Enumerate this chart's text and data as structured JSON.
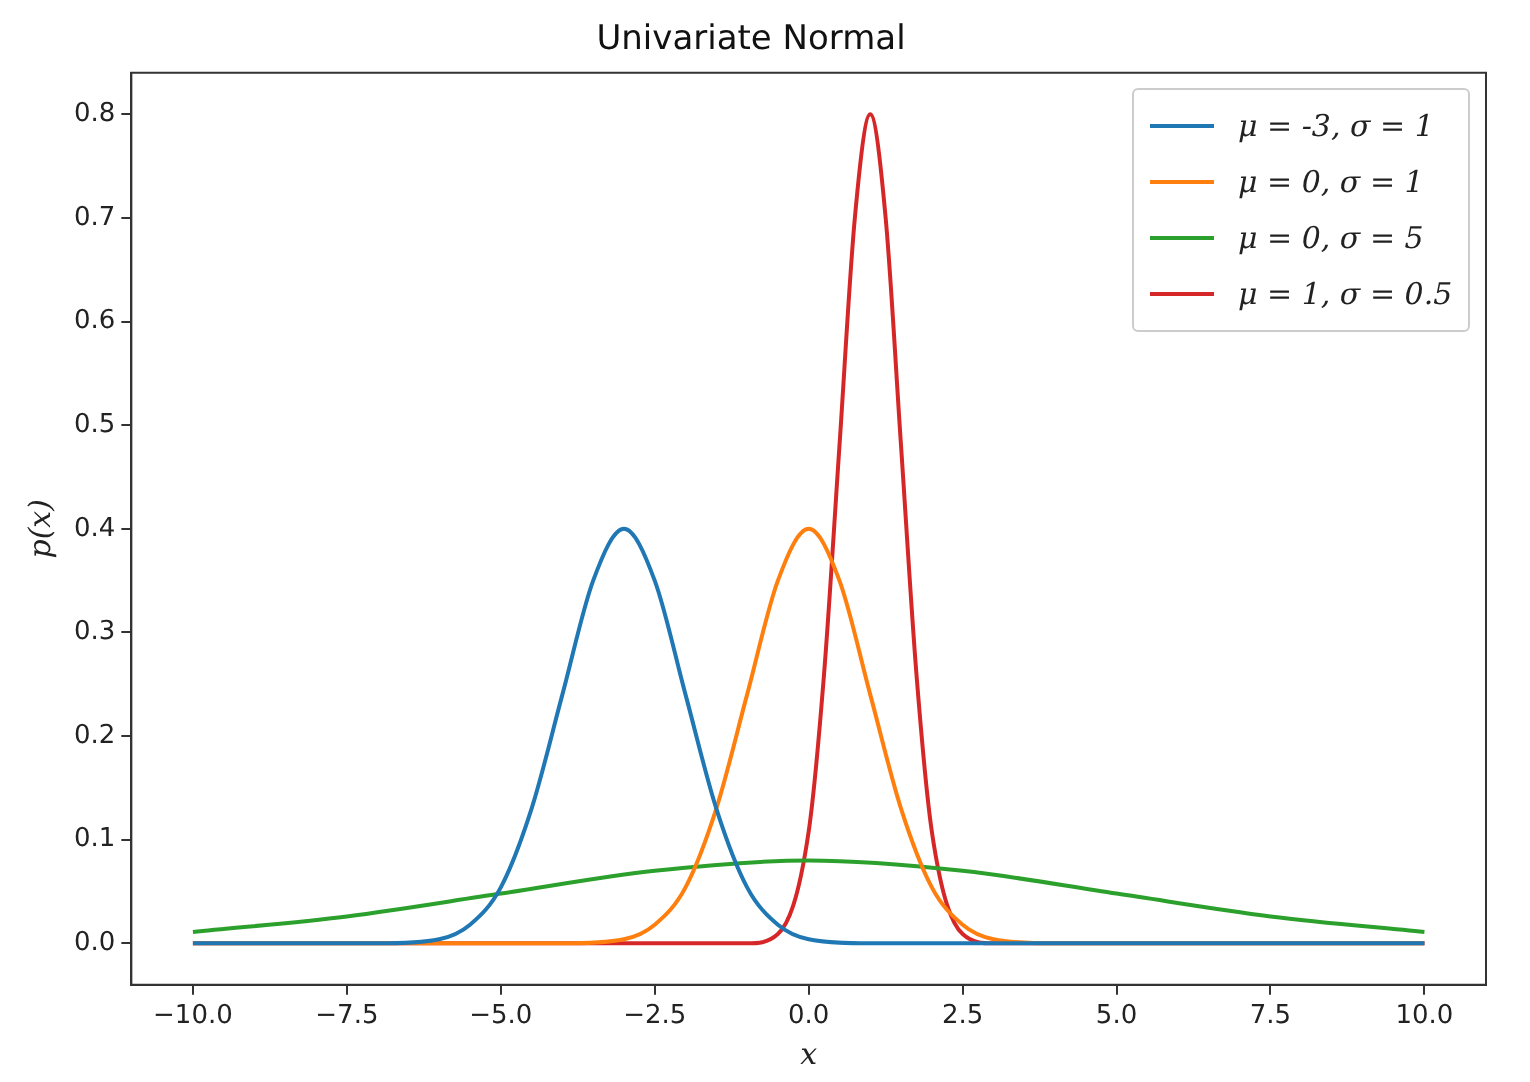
{
  "chart_data": {
    "type": "line",
    "title": "Univariate Normal",
    "xlabel": "x",
    "ylabel": "p(x)",
    "xlim": [
      -11,
      11
    ],
    "xticks": [
      {
        "value": -10,
        "label": "−10.0"
      },
      {
        "value": -7.5,
        "label": "−7.5"
      },
      {
        "value": -5,
        "label": "−5.0"
      },
      {
        "value": -2.5,
        "label": "−2.5"
      },
      {
        "value": 0,
        "label": "0.0"
      },
      {
        "value": 2.5,
        "label": "2.5"
      },
      {
        "value": 5,
        "label": "5.0"
      },
      {
        "value": 7.5,
        "label": "7.5"
      },
      {
        "value": 10,
        "label": "10.0"
      }
    ],
    "ylim": [
      -0.04,
      0.84
    ],
    "yticks": [
      {
        "value": 0,
        "label": "0.0"
      },
      {
        "value": 0.1,
        "label": "0.1"
      },
      {
        "value": 0.2,
        "label": "0.2"
      },
      {
        "value": 0.3,
        "label": "0.3"
      },
      {
        "value": 0.4,
        "label": "0.4"
      },
      {
        "value": 0.5,
        "label": "0.5"
      },
      {
        "value": 0.6,
        "label": "0.6"
      },
      {
        "value": 0.7,
        "label": "0.7"
      },
      {
        "value": 0.8,
        "label": "0.8"
      }
    ],
    "grid": false,
    "legend": "top right",
    "marker": "none",
    "line_style": "solid",
    "series": [
      {
        "name": "μ = -3, σ = 1",
        "color": "#1f77b4",
        "x": [
          -10,
          -7,
          -6,
          -5.5,
          -5,
          -4.5,
          -4,
          -3.5,
          -3,
          -2.5,
          -2,
          -1.5,
          -1,
          -0.5,
          0,
          1,
          10
        ],
        "values": [
          0,
          0,
          0.004,
          0.018,
          0.054,
          0.13,
          0.24,
          0.35,
          0.4,
          0.35,
          0.24,
          0.13,
          0.054,
          0.018,
          0.004,
          0,
          0
        ]
      },
      {
        "name": "μ = 0, σ = 1",
        "color": "#ff7f0e",
        "x": [
          -10,
          -4,
          -3,
          -2.5,
          -2,
          -1.5,
          -1,
          -0.5,
          0,
          0.5,
          1,
          1.5,
          2,
          2.5,
          3,
          4,
          10
        ],
        "values": [
          0,
          0,
          0.004,
          0.018,
          0.054,
          0.13,
          0.24,
          0.35,
          0.4,
          0.35,
          0.24,
          0.13,
          0.054,
          0.018,
          0.004,
          0,
          0
        ]
      },
      {
        "name": "μ = 0, σ = 5",
        "color": "#2ca02c",
        "x": [
          -10,
          -7.5,
          -5,
          -2.5,
          0,
          2.5,
          5,
          7.5,
          10
        ],
        "values": [
          0.011,
          0.026,
          0.048,
          0.07,
          0.08,
          0.07,
          0.048,
          0.026,
          0.011
        ]
      },
      {
        "name": "μ = 1, σ = 0.5",
        "color": "#d62728",
        "x": [
          -10,
          -1,
          -0.5,
          0,
          0.25,
          0.5,
          0.75,
          1,
          1.25,
          1.5,
          1.75,
          2,
          2.5,
          3,
          10
        ],
        "values": [
          0,
          0,
          0.009,
          0.108,
          0.26,
          0.48,
          0.7,
          0.8,
          0.7,
          0.48,
          0.26,
          0.108,
          0.009,
          0,
          0
        ]
      }
    ]
  }
}
